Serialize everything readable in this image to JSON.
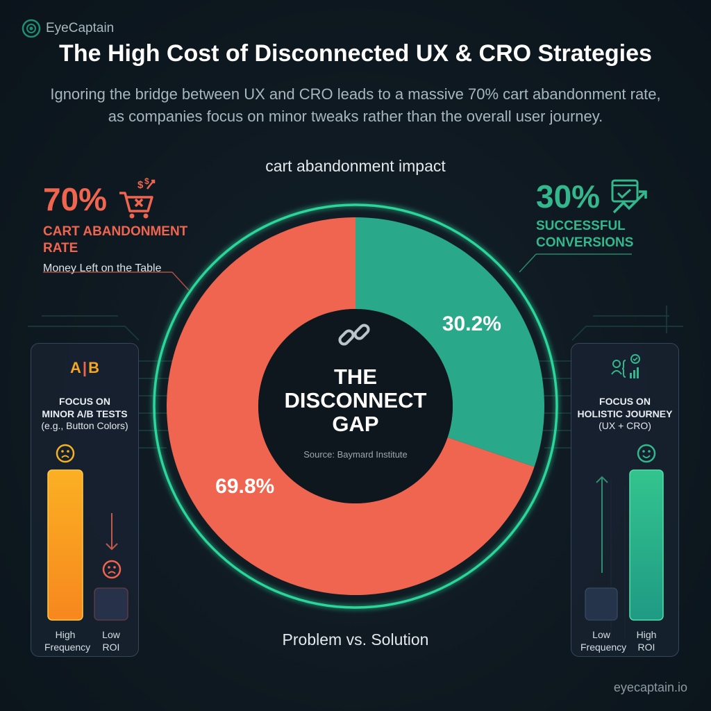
{
  "brand": {
    "name": "EyeCaptain",
    "site": "eyecaptain.io"
  },
  "title": "The High Cost of Disconnected UX & CRO Strategies",
  "subtitle": "Ignoring the bridge between UX and CRO leads to a massive 70% cart abandonment rate, as companies focus on minor tweaks rather than the overall user journey.",
  "left_stat": {
    "value": "70%",
    "label_line1": "CART ABANDONMENT",
    "label_line2": "RATE",
    "sub": "Money Left on the Table",
    "color": "#f0654f"
  },
  "right_stat": {
    "value": "30%",
    "label_line1": "SUCCESSFUL",
    "label_line2": "CONVERSIONS",
    "color": "#33b88d"
  },
  "center": {
    "line1": "THE",
    "line2": "DISCONNECT",
    "line3": "GAP",
    "source": "Source: Baymard Institute"
  },
  "bottom_caption": "Problem vs. Solution",
  "left_panel": {
    "icon_a": "A",
    "icon_b": "B",
    "title_line1": "FOCUS ON",
    "title_line2": "MINOR A/B TESTS",
    "sub": "(e.g., Button Colors)",
    "bar1_label": [
      "High",
      "Frequency"
    ],
    "bar2_label": [
      "Low",
      "ROI"
    ],
    "bar1_level": 1.0,
    "bar2_level": 0.2
  },
  "right_panel": {
    "title_line1": "FOCUS ON",
    "title_line2": "HOLISTIC JOURNEY",
    "sub": "(UX + CRO)",
    "bar1_label": [
      "Low",
      "Frequency"
    ],
    "bar2_label": [
      "High",
      "ROI"
    ],
    "bar1_level": 0.2,
    "bar2_level": 1.0
  },
  "icons": [
    "logo-eye-icon",
    "shopping-cart-icon",
    "conversion-growth-icon",
    "broken-link-icon",
    "sad-face-icon",
    "happy-face-icon",
    "user-journey-icon",
    "arrow-down-icon",
    "arrow-up-icon"
  ],
  "chart_data": {
    "type": "pie",
    "title": "cart abandonment impact",
    "categories": [
      "cart abandonment",
      "successful conversions"
    ],
    "values": [
      69.8,
      30.2
    ],
    "labels": [
      "69.8%",
      "30.2%"
    ],
    "colors": [
      "#f0654f",
      "#2aa88a"
    ]
  }
}
